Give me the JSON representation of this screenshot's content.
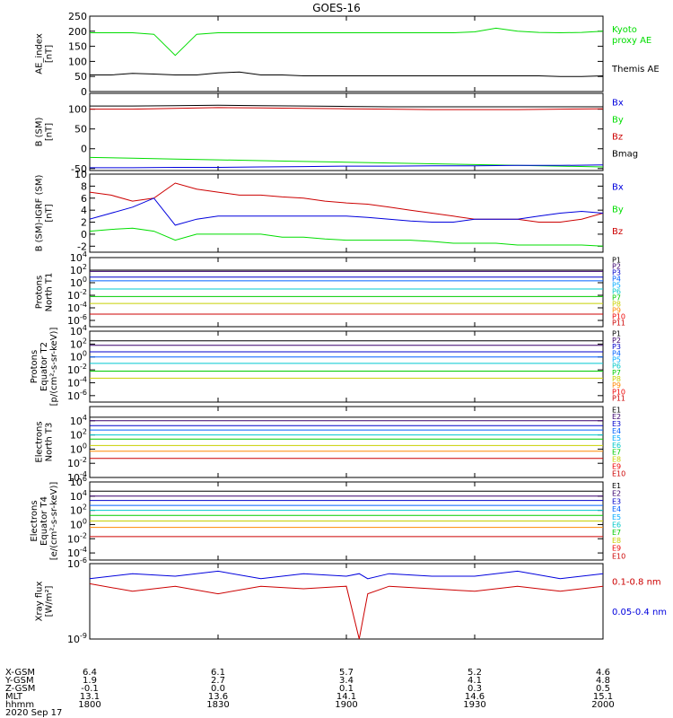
{
  "title": "GOES-16",
  "colors": {
    "black": "#000000",
    "green": "#00dd00",
    "blue": "#0000dd",
    "red": "#cc0000"
  },
  "chart_data": [
    {
      "type": "line",
      "ylabel": [
        "AE_index",
        "[nT]"
      ],
      "ylim": [
        0,
        250
      ],
      "yticks": [
        "0",
        "50",
        "100",
        "150",
        "200",
        "250"
      ],
      "x": [
        1800,
        1805,
        1810,
        1815,
        1820,
        1825,
        1830,
        1835,
        1840,
        1845,
        1850,
        1855,
        1900,
        1905,
        1910,
        1915,
        1920,
        1925,
        1930,
        1935,
        1940,
        1945,
        1950,
        1955,
        2000
      ],
      "series": [
        {
          "name": "Kyoto proxy AE",
          "color": "green",
          "values": [
            195,
            195,
            195,
            190,
            120,
            190,
            195,
            195,
            195,
            195,
            195,
            195,
            195,
            195,
            195,
            195,
            195,
            195,
            198,
            210,
            200,
            196,
            195,
            196,
            200
          ]
        },
        {
          "name": "Themis AE",
          "color": "black",
          "values": [
            55,
            55,
            60,
            58,
            55,
            55,
            62,
            65,
            55,
            55,
            52,
            52,
            52,
            52,
            52,
            52,
            52,
            52,
            52,
            52,
            52,
            52,
            50,
            50,
            52
          ]
        }
      ],
      "legend": [
        {
          "text": "Kyoto",
          "color": "green"
        },
        {
          "text": "proxy AE",
          "color": "green"
        },
        {
          "text": "Themis AE",
          "color": "black"
        }
      ]
    },
    {
      "type": "line",
      "ylabel": [
        "B (SM)",
        "[nT]"
      ],
      "ylim": [
        -55,
        140
      ],
      "yticks": [
        "-50",
        "0",
        "50",
        "100"
      ],
      "x": [
        1800,
        1810,
        1820,
        1830,
        1840,
        1850,
        1900,
        1910,
        1920,
        1930,
        1940,
        1950,
        2000
      ],
      "series": [
        {
          "name": "Bmag",
          "color": "black",
          "values": [
            108,
            108,
            109,
            110,
            109,
            108,
            107,
            106,
            106,
            106,
            106,
            106,
            106
          ]
        },
        {
          "name": "Bz",
          "color": "red",
          "values": [
            100,
            100,
            102,
            104,
            103,
            102,
            101,
            100,
            99,
            99,
            99,
            100,
            101
          ]
        },
        {
          "name": "By",
          "color": "green",
          "values": [
            -22,
            -24,
            -26,
            -28,
            -30,
            -32,
            -34,
            -36,
            -38,
            -40,
            -42,
            -44,
            -46
          ]
        },
        {
          "name": "Bx",
          "color": "blue",
          "values": [
            -48,
            -48,
            -47,
            -47,
            -46,
            -45,
            -44,
            -44,
            -43,
            -43,
            -42,
            -42,
            -41
          ]
        }
      ],
      "legend": [
        {
          "text": "Bx",
          "color": "blue"
        },
        {
          "text": "By",
          "color": "green"
        },
        {
          "text": "Bz",
          "color": "red"
        },
        {
          "text": "Bmag",
          "color": "black"
        }
      ]
    },
    {
      "type": "line",
      "ylabel": [
        "B (SM)-IGRF (SM)",
        "[nT]"
      ],
      "ylim": [
        -3,
        10
      ],
      "yticks": [
        "-2",
        "0",
        "2",
        "4",
        "6",
        "8",
        "10"
      ],
      "x": [
        1800,
        1805,
        1810,
        1815,
        1820,
        1825,
        1830,
        1835,
        1840,
        1845,
        1850,
        1855,
        1900,
        1905,
        1910,
        1915,
        1920,
        1925,
        1930,
        1935,
        1940,
        1945,
        1950,
        1955,
        2000
      ],
      "series": [
        {
          "name": "Bz",
          "color": "red",
          "values": [
            7,
            6.5,
            5.5,
            6,
            8.5,
            7.5,
            7,
            6.5,
            6.5,
            6.2,
            6,
            5.5,
            5.2,
            5,
            4.5,
            4,
            3.5,
            3,
            2.5,
            2.5,
            2.5,
            2,
            2,
            2.5,
            3.5
          ]
        },
        {
          "name": "Bx",
          "color": "blue",
          "values": [
            2.5,
            3.5,
            4.5,
            6,
            1.5,
            2.5,
            3,
            3,
            3,
            3,
            3,
            3,
            3,
            2.8,
            2.5,
            2.2,
            2,
            2,
            2.5,
            2.5,
            2.5,
            3,
            3.5,
            3.8,
            3.5
          ]
        },
        {
          "name": "By",
          "color": "green",
          "values": [
            0.5,
            0.8,
            1,
            0.5,
            -1,
            0,
            0,
            0,
            0,
            -0.5,
            -0.5,
            -0.8,
            -1,
            -1,
            -1,
            -1,
            -1.2,
            -1.5,
            -1.5,
            -1.5,
            -1.8,
            -1.8,
            -1.8,
            -1.8,
            -2
          ]
        }
      ],
      "legend": [
        {
          "text": "Bx",
          "color": "blue"
        },
        {
          "text": "By",
          "color": "green"
        },
        {
          "text": "Bz",
          "color": "red"
        }
      ]
    },
    {
      "type": "line",
      "log": true,
      "ylabel": [
        "Protons",
        "North T1"
      ],
      "ylim": [
        -7,
        4
      ],
      "ytick_exponents": [
        4,
        2,
        0,
        -2,
        -4,
        -6
      ],
      "x": [
        1800,
        2000
      ],
      "series": [
        {
          "name": "P1",
          "color": "#000000",
          "values": [
            2,
            2
          ]
        },
        {
          "name": "P2",
          "color": "#3a006e",
          "values": [
            1.8,
            1.8
          ]
        },
        {
          "name": "P3",
          "color": "#0000cc",
          "values": [
            0.9,
            0.9
          ]
        },
        {
          "name": "P4",
          "color": "#0060ff",
          "values": [
            0.3,
            0.3
          ]
        },
        {
          "name": "P5",
          "color": "#00c8d0",
          "values": [
            -1,
            -1
          ]
        },
        {
          "name": "P6",
          "color": "#00cc00",
          "values": [
            -2.2,
            -2.2
          ]
        },
        {
          "name": "P7",
          "color": "#c8d000",
          "values": [
            -3.3,
            -3.3
          ]
        },
        {
          "name": "P10",
          "color": "#cc0000",
          "values": [
            -5,
            -5
          ]
        }
      ],
      "legend": [
        {
          "text": "P1",
          "color": "#000000"
        },
        {
          "text": "P2",
          "color": "#3a006e"
        },
        {
          "text": "P3",
          "color": "#0000cc"
        },
        {
          "text": "P4",
          "color": "#0060ff"
        },
        {
          "text": "P5",
          "color": "#00aaff"
        },
        {
          "text": "P6",
          "color": "#00c8c8"
        },
        {
          "text": "P7",
          "color": "#00cc00"
        },
        {
          "text": "P8",
          "color": "#c8d000"
        },
        {
          "text": "P9",
          "color": "#ff8800"
        },
        {
          "text": "P10",
          "color": "#ee0000"
        },
        {
          "text": "P11",
          "color": "#cc0000"
        }
      ]
    },
    {
      "type": "line",
      "log": true,
      "ylabel": [
        "Protons",
        "Equator T2",
        "[p/(cm²-s-sr-keV)]"
      ],
      "ylim": [
        -7,
        4
      ],
      "ytick_exponents": [
        4,
        2,
        0,
        -2,
        -4,
        -6
      ],
      "x": [
        1800,
        2000
      ],
      "series": [
        {
          "name": "P1",
          "color": "#000000",
          "values": [
            2.5,
            2.5
          ]
        },
        {
          "name": "P2",
          "color": "#3a006e",
          "values": [
            1.8,
            1.8
          ]
        },
        {
          "name": "P3",
          "color": "#0000cc",
          "values": [
            0.8,
            0.8
          ]
        },
        {
          "name": "P4",
          "color": "#0060ff",
          "values": [
            0,
            0
          ]
        },
        {
          "name": "P5",
          "color": "#00c8d0",
          "values": [
            -1,
            -1
          ]
        },
        {
          "name": "P6",
          "color": "#00cc00",
          "values": [
            -2.2,
            -2.2
          ]
        },
        {
          "name": "P7",
          "color": "#c8d000",
          "values": [
            -3.3,
            -3.3
          ]
        }
      ],
      "legend": [
        {
          "text": "P1",
          "color": "#000000"
        },
        {
          "text": "P2",
          "color": "#3a006e"
        },
        {
          "text": "P3",
          "color": "#0000cc"
        },
        {
          "text": "P4",
          "color": "#0060ff"
        },
        {
          "text": "P5",
          "color": "#00aaff"
        },
        {
          "text": "P6",
          "color": "#00c8c8"
        },
        {
          "text": "P7",
          "color": "#00cc00"
        },
        {
          "text": "P8",
          "color": "#c8d000"
        },
        {
          "text": "P9",
          "color": "#ff8800"
        },
        {
          "text": "P10",
          "color": "#ee0000"
        },
        {
          "text": "P11",
          "color": "#cc0000"
        }
      ]
    },
    {
      "type": "line",
      "log": true,
      "ylabel": [
        "Electrons",
        "North T3"
      ],
      "ylim": [
        -4,
        6
      ],
      "ytick_exponents": [
        4,
        2,
        0,
        -2,
        -4
      ],
      "x": [
        1800,
        2000
      ],
      "series": [
        {
          "name": "E1",
          "color": "#000000",
          "values": [
            4.5,
            4.5
          ]
        },
        {
          "name": "E2",
          "color": "#3a006e",
          "values": [
            4,
            4
          ]
        },
        {
          "name": "E3",
          "color": "#0000cc",
          "values": [
            3.3,
            3.3
          ]
        },
        {
          "name": "E4",
          "color": "#0060ff",
          "values": [
            2.7,
            2.7
          ]
        },
        {
          "name": "E5",
          "color": "#00c8d0",
          "values": [
            2,
            2
          ]
        },
        {
          "name": "E6",
          "color": "#00cc00",
          "values": [
            1.4,
            1.4
          ]
        },
        {
          "name": "E7",
          "color": "#c8d000",
          "values": [
            0.5,
            0.5
          ]
        },
        {
          "name": "E8",
          "color": "#ff8800",
          "values": [
            -0.3,
            -0.3
          ]
        },
        {
          "name": "E9",
          "color": "#cc0000",
          "values": [
            -1.3,
            -1.3
          ]
        }
      ],
      "legend": [
        {
          "text": "E1",
          "color": "#000000"
        },
        {
          "text": "E2",
          "color": "#3a006e"
        },
        {
          "text": "E3",
          "color": "#0000cc"
        },
        {
          "text": "E4",
          "color": "#0060ff"
        },
        {
          "text": "E5",
          "color": "#00aaff"
        },
        {
          "text": "E6",
          "color": "#00c8c8"
        },
        {
          "text": "E7",
          "color": "#00cc00"
        },
        {
          "text": "E8",
          "color": "#c8d000"
        },
        {
          "text": "E9",
          "color": "#ee0000"
        },
        {
          "text": "E10",
          "color": "#cc0000"
        }
      ]
    },
    {
      "type": "line",
      "log": true,
      "ylabel": [
        "Electrons",
        "Equator T4",
        "[e/(cm²-s-sr-keV)]"
      ],
      "ylim": [
        -5,
        6
      ],
      "ytick_exponents": [
        6,
        4,
        2,
        0,
        -2,
        -4
      ],
      "x": [
        1800,
        2000
      ],
      "series": [
        {
          "name": "E1",
          "color": "#000000",
          "values": [
            4.7,
            4.7
          ]
        },
        {
          "name": "E2",
          "color": "#3a006e",
          "values": [
            4,
            4
          ]
        },
        {
          "name": "E3",
          "color": "#0000cc",
          "values": [
            3.4,
            3.4
          ]
        },
        {
          "name": "E4",
          "color": "#0060ff",
          "values": [
            2.7,
            2.7
          ]
        },
        {
          "name": "E5",
          "color": "#00c8d0",
          "values": [
            2,
            2
          ]
        },
        {
          "name": "E6",
          "color": "#00cc00",
          "values": [
            1.3,
            1.3
          ]
        },
        {
          "name": "E7",
          "color": "#c8d000",
          "values": [
            0.5,
            0.5
          ]
        },
        {
          "name": "E8",
          "color": "#ff8800",
          "values": [
            -0.4,
            -0.4
          ]
        },
        {
          "name": "E9",
          "color": "#cc0000",
          "values": [
            -1.7,
            -1.7
          ]
        }
      ],
      "legend": [
        {
          "text": "E1",
          "color": "#000000"
        },
        {
          "text": "E2",
          "color": "#3a006e"
        },
        {
          "text": "E3",
          "color": "#0000cc"
        },
        {
          "text": "E4",
          "color": "#0060ff"
        },
        {
          "text": "E5",
          "color": "#00aaff"
        },
        {
          "text": "E6",
          "color": "#00c8c8"
        },
        {
          "text": "E7",
          "color": "#00cc00"
        },
        {
          "text": "E8",
          "color": "#c8d000"
        },
        {
          "text": "E9",
          "color": "#ee0000"
        },
        {
          "text": "E10",
          "color": "#cc0000"
        }
      ]
    },
    {
      "type": "line",
      "log": true,
      "ylabel": [
        "Xray flux",
        "[W/m²]"
      ],
      "ylim": [
        -9,
        -6
      ],
      "ytick_exponents": [
        -6,
        -9
      ],
      "x": [
        1800,
        1810,
        1820,
        1830,
        1840,
        1850,
        1900,
        1903,
        1905,
        1910,
        1920,
        1930,
        1940,
        1950,
        2000
      ],
      "series": [
        {
          "name": "0.1-0.8 nm",
          "color": "red",
          "values": [
            -6.8,
            -7.1,
            -6.9,
            -7.2,
            -6.9,
            -7.0,
            -6.9,
            -9.0,
            -7.2,
            -6.9,
            -7.0,
            -7.1,
            -6.9,
            -7.1,
            -6.9
          ]
        },
        {
          "name": "0.05-0.4 nm",
          "color": "blue",
          "values": [
            -6.6,
            -6.4,
            -6.5,
            -6.3,
            -6.6,
            -6.4,
            -6.5,
            -6.4,
            -6.6,
            -6.4,
            -6.5,
            -6.5,
            -6.3,
            -6.6,
            -6.4
          ]
        }
      ],
      "legend": [
        {
          "text": "0.1-0.8 nm",
          "color": "red"
        },
        {
          "text": "0.05-0.4 nm",
          "color": "blue"
        }
      ]
    }
  ],
  "x_axis": {
    "xlim": [
      1800,
      2000
    ],
    "tick_values": [
      1800,
      1830,
      1900,
      1930,
      2000
    ],
    "table": [
      {
        "label": "X-GSM",
        "values": [
          "6.4",
          "6.1",
          "5.7",
          "5.2",
          "4.6"
        ]
      },
      {
        "label": "Y-GSM",
        "values": [
          "1.9",
          "2.7",
          "3.4",
          "4.1",
          "4.8"
        ]
      },
      {
        "label": "Z-GSM",
        "values": [
          "-0.1",
          "0.0",
          "0.1",
          "0.3",
          "0.5"
        ]
      },
      {
        "label": "MLT",
        "values": [
          "13.1",
          "13.6",
          "14.1",
          "14.6",
          "15.1"
        ]
      },
      {
        "label": "hhmm",
        "values": [
          "1800",
          "1830",
          "1900",
          "1930",
          "2000"
        ]
      }
    ],
    "date": "2020 Sep 17"
  }
}
